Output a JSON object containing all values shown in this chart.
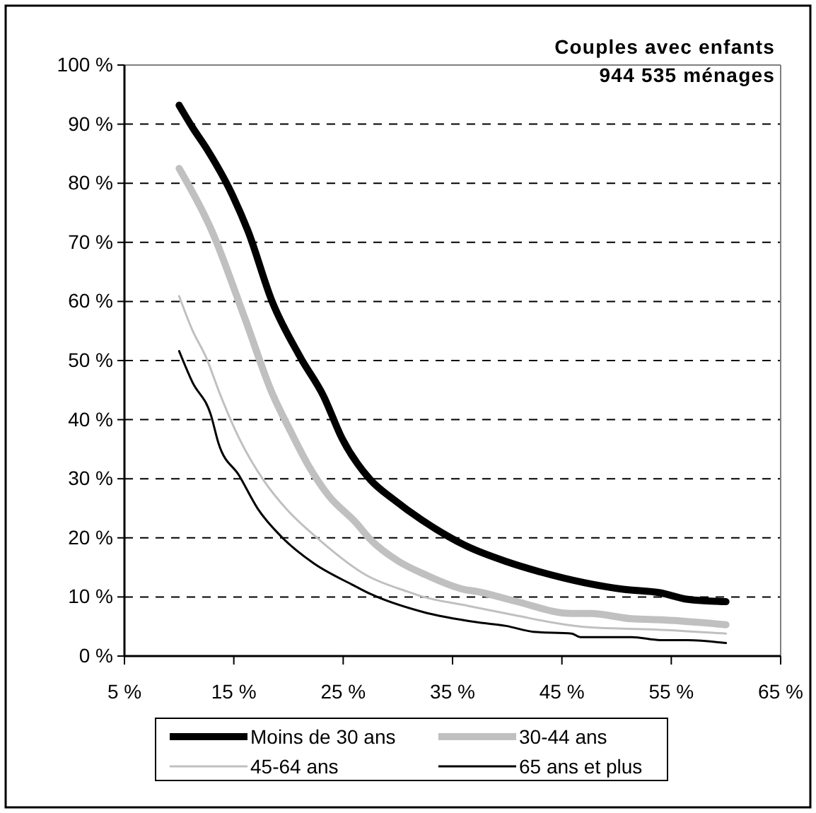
{
  "chart_data": {
    "type": "line",
    "title": "Couples avec enfants",
    "subtitle": "944 535 ménages",
    "xlim": [
      5,
      65
    ],
    "ylim": [
      0,
      100
    ],
    "xticks": [
      {
        "value": 5,
        "label": "5 %"
      },
      {
        "value": 15,
        "label": "15 %"
      },
      {
        "value": 25,
        "label": "25 %"
      },
      {
        "value": 35,
        "label": "35 %"
      },
      {
        "value": 45,
        "label": "45 %"
      },
      {
        "value": 55,
        "label": "55 %"
      },
      {
        "value": 65,
        "label": "65 %"
      }
    ],
    "yticks": [
      {
        "value": 0,
        "label": "0 %"
      },
      {
        "value": 10,
        "label": "10 %"
      },
      {
        "value": 20,
        "label": "20 %"
      },
      {
        "value": 30,
        "label": "30 %"
      },
      {
        "value": 40,
        "label": "40 %"
      },
      {
        "value": 50,
        "label": "50 %"
      },
      {
        "value": 60,
        "label": "60 %"
      },
      {
        "value": 70,
        "label": "70 %"
      },
      {
        "value": 80,
        "label": "80 %"
      },
      {
        "value": 90,
        "label": "90 %"
      },
      {
        "value": 100,
        "label": "100 %"
      }
    ],
    "grid": "y",
    "legend": "bottom",
    "marker": "none",
    "line_style": "solid",
    "series": [
      {
        "name": "Moins de 30 ans",
        "color": "#000000",
        "x": [
          10,
          11.2,
          12.5,
          14.9,
          16.3,
          18.5,
          21.1,
          23.2,
          24.9,
          27.5,
          29.6,
          32.2,
          36.4,
          39.9,
          42.9,
          47.1,
          50.6,
          54,
          56.5,
          60
        ],
        "values": [
          93.2,
          89.5,
          85.9,
          77.9,
          71.9,
          60,
          50.5,
          44,
          36.8,
          29.8,
          26.5,
          23,
          18.5,
          16,
          14.3,
          12.4,
          11.3,
          10.7,
          9.6,
          9.2
        ]
      },
      {
        "name": "30-44 ans",
        "color": "#c0c0c0",
        "x": [
          10,
          13,
          16,
          18.5,
          20.2,
          21.9,
          23.6,
          26.2,
          27.5,
          30,
          32.6,
          36,
          37.3,
          40.7,
          45.9,
          47.6,
          51.4,
          54.4,
          60
        ],
        "values": [
          82.5,
          71.9,
          57.2,
          44.5,
          38,
          32,
          27.3,
          22.5,
          19.7,
          16.1,
          13.7,
          11.3,
          10.9,
          9.3,
          7.2,
          7.2,
          6.3,
          6.1,
          5.3
        ]
      },
      {
        "name": "45-64 ans",
        "color": "#c0c0c0",
        "x": [
          10,
          11.2,
          12.5,
          13.7,
          15.5,
          17.7,
          19.8,
          22.8,
          27.1,
          30.9,
          32.2,
          36.4,
          40.7,
          45.4,
          48,
          53.5,
          60
        ],
        "values": [
          60.9,
          55.2,
          50.4,
          44.5,
          36.8,
          29.8,
          24.9,
          19.7,
          13.7,
          10.9,
          10.1,
          8.5,
          6.9,
          5.3,
          4.8,
          4.5,
          3.8
        ]
      },
      {
        "name": "65 ans et plus",
        "color": "#000000",
        "x": [
          10,
          11.2,
          12.9,
          13.6,
          15.5,
          17.2,
          19.4,
          22.3,
          25.8,
          27.5,
          32.2,
          37.3,
          39.9,
          42.4,
          45.9,
          46.7,
          51.4,
          54,
          56.5,
          60
        ],
        "values": [
          51.6,
          46.4,
          40.8,
          36,
          30.5,
          24.9,
          20.1,
          15.7,
          12.1,
          10.5,
          7.5,
          5.7,
          5.1,
          4.1,
          3.8,
          3.2,
          3.2,
          2.7,
          2.7,
          2.2
        ]
      }
    ]
  }
}
